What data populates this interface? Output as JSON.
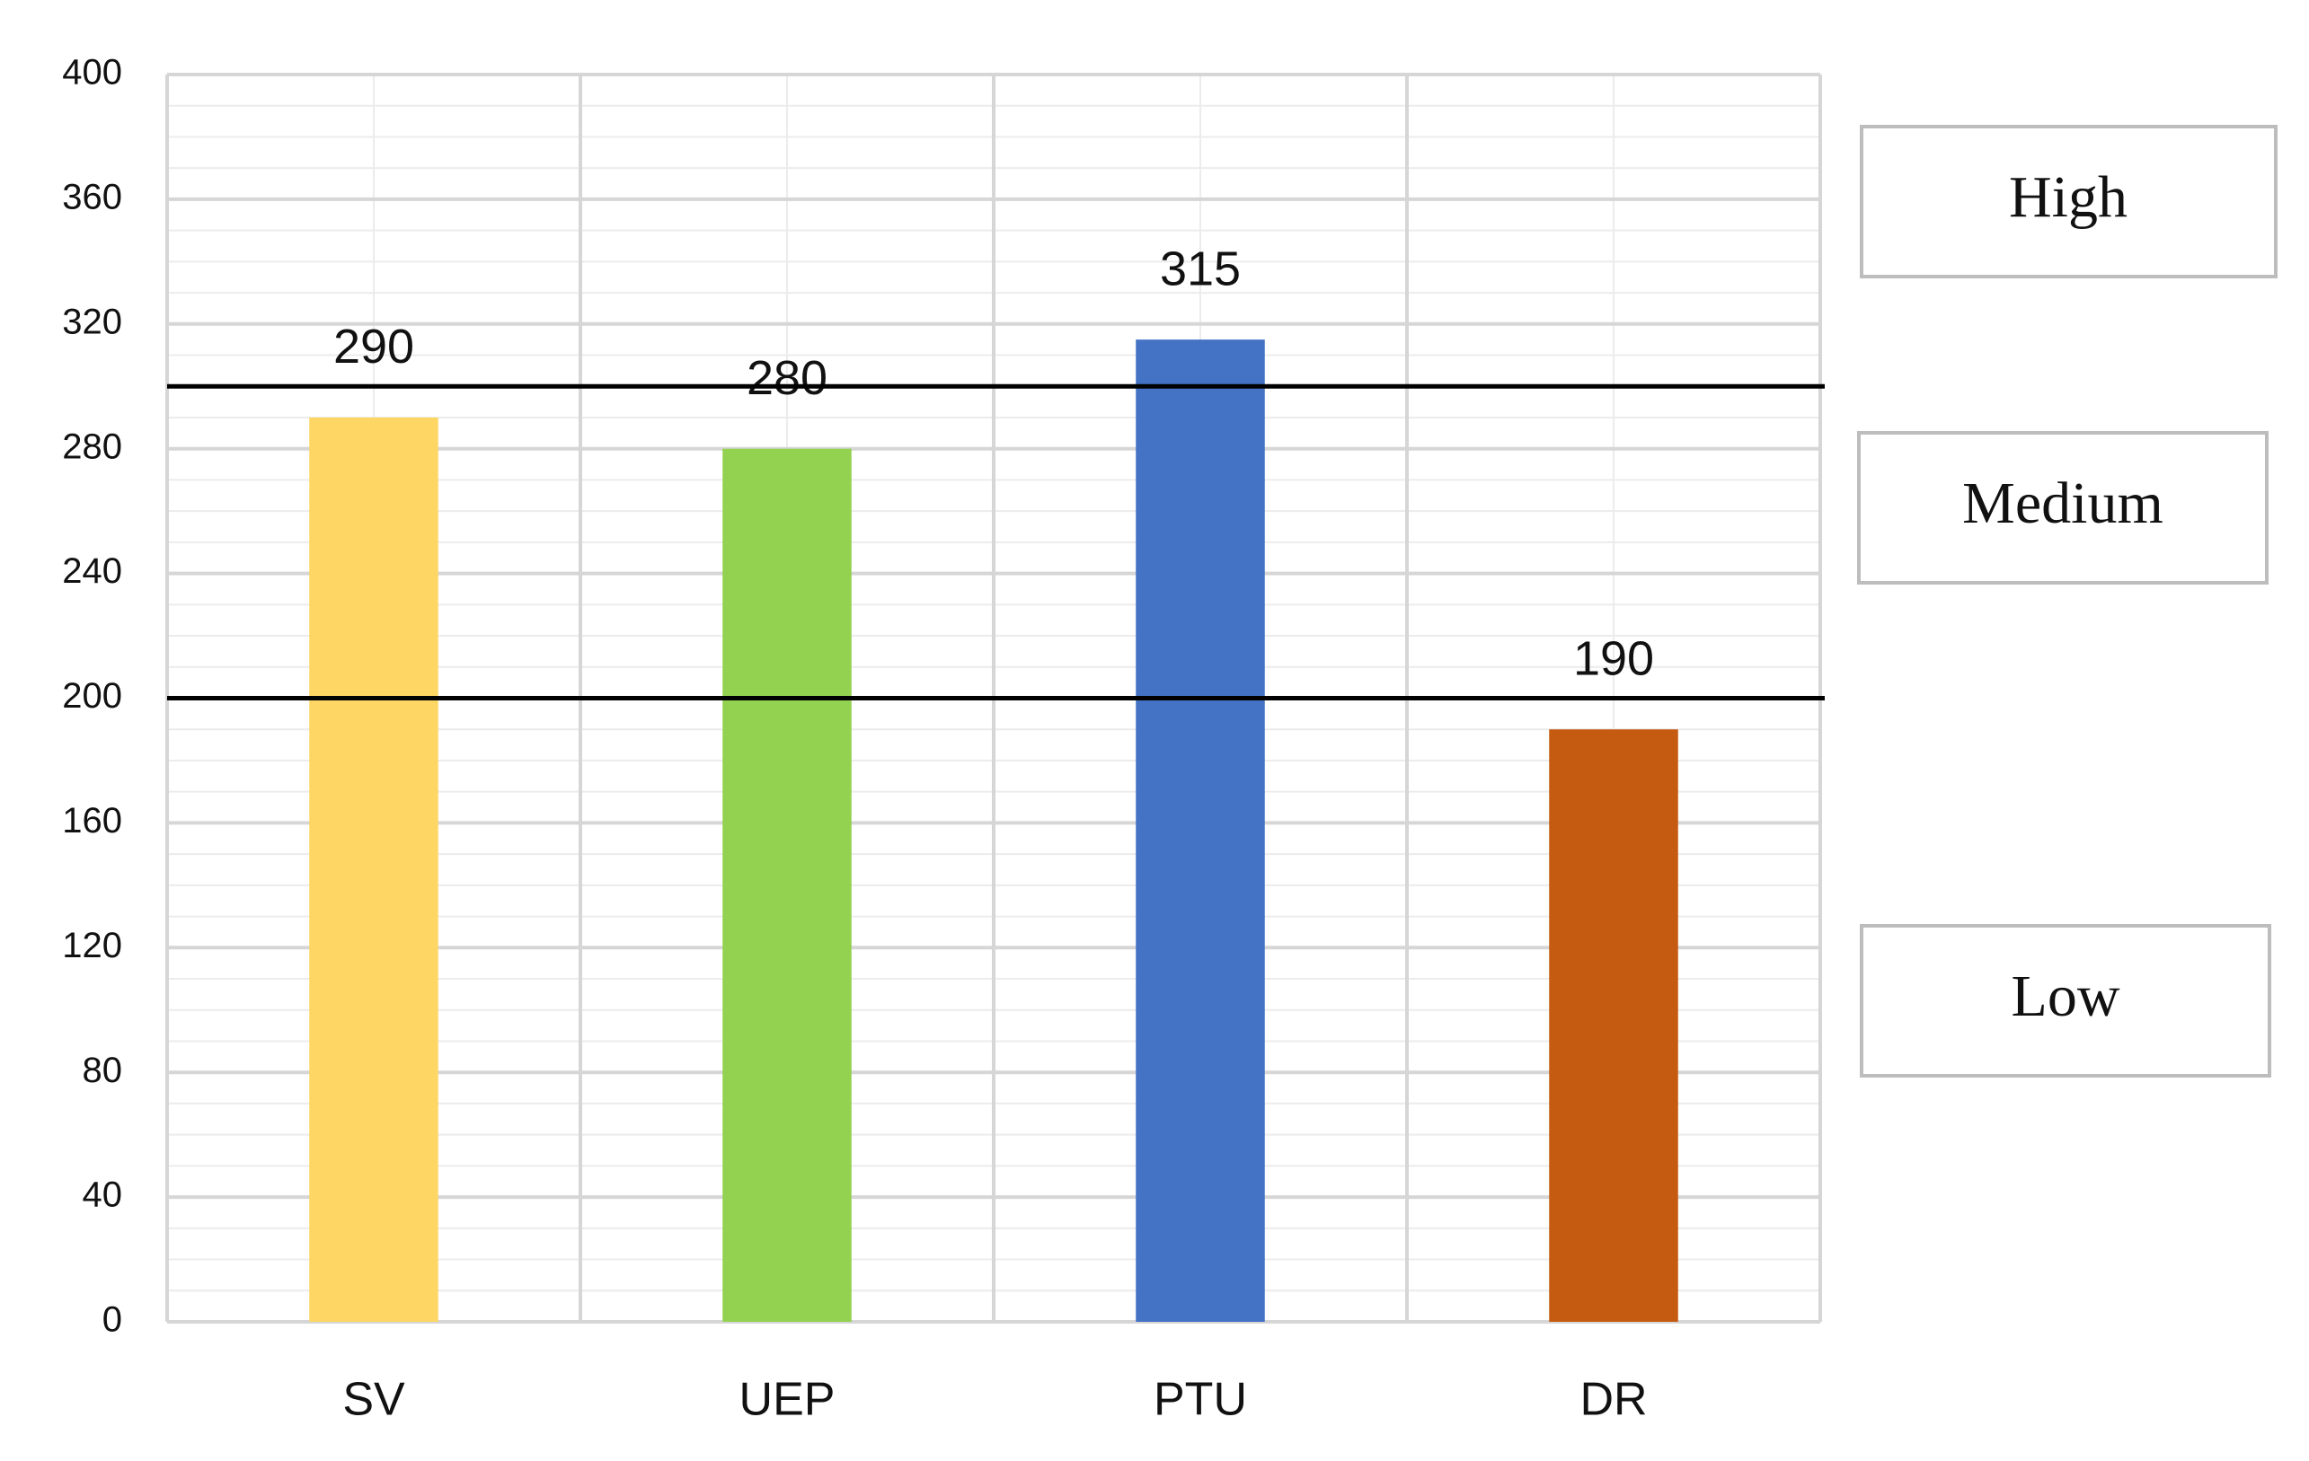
{
  "chart_data": {
    "type": "bar",
    "categories": [
      "SV",
      "UEP",
      "PTU",
      "DR"
    ],
    "values": [
      290,
      280,
      315,
      190
    ],
    "colors": [
      "#fdd664",
      "#93d150",
      "#4472c4",
      "#c55a11"
    ],
    "ylim": [
      0,
      400
    ],
    "yticks": [
      0,
      40,
      80,
      120,
      160,
      200,
      240,
      280,
      320,
      360,
      400
    ],
    "grid": true,
    "reference_lines": [
      300,
      200
    ],
    "band_labels": [
      "High",
      "Medium",
      "Low"
    ]
  }
}
